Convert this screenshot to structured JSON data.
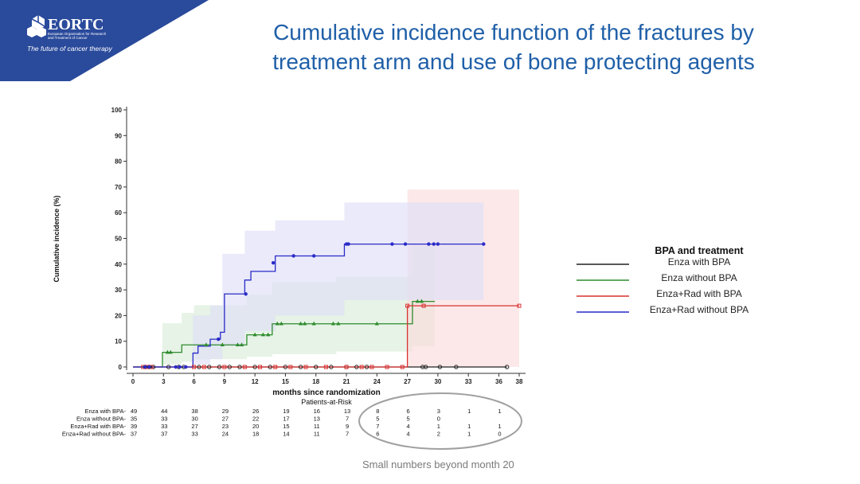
{
  "slide": {
    "title_line1": "Cumulative incidence function of the fractures by",
    "title_line2": "treatment arm and use of bone protecting agents",
    "footnote": "Small numbers beyond month 20",
    "logo": {
      "name": "EORTC",
      "line1": "European Organisation for Research",
      "line2": "and Treatment of Cancer",
      "tagline": "The future of cancer therapy",
      "color": "#2a4a9b"
    }
  },
  "chart_data": {
    "type": "line",
    "subtype": "step",
    "xlabel": "months since randomization",
    "ylabel": "Cumulative incidence (%)",
    "xlim": [
      0,
      38
    ],
    "ylim": [
      0,
      100
    ],
    "xticks": [
      0,
      3,
      6,
      9,
      12,
      15,
      18,
      21,
      24,
      27,
      30,
      33,
      36,
      38
    ],
    "yticks": [
      0,
      10,
      20,
      30,
      40,
      50,
      60,
      70,
      80,
      90,
      100
    ],
    "grid": false,
    "legend": {
      "title": "BPA and treatment",
      "placement": "right"
    },
    "series": [
      {
        "name": "Enza with BPA",
        "color": "#222222",
        "x": [
          0,
          36.8
        ],
        "y": [
          0,
          0
        ],
        "censor": [
          [
            1.2,
            0
          ],
          [
            1.6,
            0
          ],
          [
            2.0,
            0
          ],
          [
            3.5,
            0
          ],
          [
            4.5,
            0
          ],
          [
            5.0,
            0
          ],
          [
            6.5,
            0
          ],
          [
            7.5,
            0
          ],
          [
            8.5,
            0
          ],
          [
            9.5,
            0
          ],
          [
            10.5,
            0
          ],
          [
            12,
            0
          ],
          [
            13.5,
            0
          ],
          [
            15,
            0
          ],
          [
            16.5,
            0
          ],
          [
            18,
            0
          ],
          [
            19.5,
            0
          ],
          [
            21,
            0
          ],
          [
            22,
            0
          ],
          [
            23,
            0
          ],
          [
            28.5,
            0
          ],
          [
            28.8,
            0
          ],
          [
            30.2,
            0
          ],
          [
            31.8,
            0
          ],
          [
            36.8,
            0
          ]
        ]
      },
      {
        "name": "Enza without BPA",
        "color": "#2e8b2e",
        "band": {
          "color": "#d9ecd9",
          "x": [
            2.9,
            4.8,
            6.0,
            11.2,
            13.7,
            20.0,
            27.5,
            29.7
          ],
          "lo": [
            1,
            2,
            3,
            4,
            5,
            6,
            8,
            8
          ],
          "hi": [
            17,
            21,
            24,
            28,
            33,
            35,
            47,
            47
          ]
        },
        "x": [
          0,
          2.9,
          4.8,
          8.8,
          11.2,
          13.7,
          27.5,
          29.7
        ],
        "y": [
          0,
          5.7,
          8.6,
          8.6,
          12.5,
          16.8,
          25.5,
          25.5
        ],
        "censor": [
          [
            3.4,
            5.7
          ],
          [
            3.7,
            5.7
          ],
          [
            7.2,
            8.6
          ],
          [
            8.8,
            8.6
          ],
          [
            10.3,
            8.6
          ],
          [
            10.7,
            8.6
          ],
          [
            12,
            12.5
          ],
          [
            12.8,
            12.5
          ],
          [
            13.3,
            12.5
          ],
          [
            14.2,
            16.8
          ],
          [
            14.6,
            16.8
          ],
          [
            16.5,
            16.8
          ],
          [
            16.9,
            16.8
          ],
          [
            17.8,
            16.8
          ],
          [
            19.7,
            16.8
          ],
          [
            20.2,
            16.8
          ],
          [
            24,
            16.8
          ],
          [
            28,
            25.5
          ],
          [
            28.4,
            25.5
          ]
        ]
      },
      {
        "name": "Enza+Rad with BPA",
        "color": "#d93030",
        "band": {
          "color": "#fbdcdc",
          "x": [
            27.0,
            38.0
          ],
          "lo": [
            0,
            0
          ],
          "hi": [
            69,
            69
          ]
        },
        "x": [
          0,
          27.0,
          38.0
        ],
        "y": [
          0,
          23.8,
          23.8
        ],
        "censor": [
          [
            1.0,
            0
          ],
          [
            1.4,
            0
          ],
          [
            1.8,
            0
          ],
          [
            6.0,
            0
          ],
          [
            7.0,
            0
          ],
          [
            9.0,
            0
          ],
          [
            11.0,
            0
          ],
          [
            12.5,
            0
          ],
          [
            14.0,
            0
          ],
          [
            15.5,
            0
          ],
          [
            17.0,
            0
          ],
          [
            19.0,
            0
          ],
          [
            21.0,
            0
          ],
          [
            22.5,
            0
          ],
          [
            23.5,
            0
          ],
          [
            25.0,
            0
          ],
          [
            26.5,
            0
          ],
          [
            27.0,
            23.8
          ],
          [
            28.6,
            23.8
          ],
          [
            38.0,
            23.8
          ]
        ]
      },
      {
        "name": "Enza+Rad without BPA",
        "color": "#2a2ac8",
        "band": {
          "color": "#dedef8",
          "x": [
            5.9,
            7.6,
            8.8,
            11.0,
            14.0,
            20.8,
            34.5
          ],
          "lo": [
            1,
            3,
            8,
            14,
            20,
            26,
            30
          ],
          "hi": [
            20,
            24,
            44,
            53,
            57,
            64,
            64
          ]
        },
        "x": [
          0,
          5.9,
          6.4,
          7.6,
          8.6,
          9.0,
          11.0,
          11.6,
          14.0,
          20.8,
          34.5
        ],
        "y": [
          0,
          5.4,
          8.1,
          10.8,
          13.5,
          28.4,
          33.8,
          37.2,
          43.2,
          47.8,
          47.8
        ],
        "censor": [
          [
            1.2,
            0
          ],
          [
            1.6,
            0
          ],
          [
            4.2,
            0
          ],
          [
            4.6,
            0
          ],
          [
            5.2,
            0
          ],
          [
            8.4,
            10.8
          ],
          [
            11.1,
            28.4
          ],
          [
            13.8,
            40.5
          ],
          [
            15.8,
            43.2
          ],
          [
            17.8,
            43.2
          ],
          [
            21,
            47.8
          ],
          [
            21.2,
            47.8
          ],
          [
            25.5,
            47.8
          ],
          [
            26.8,
            47.8
          ],
          [
            29.1,
            47.8
          ],
          [
            29.6,
            47.8
          ],
          [
            30.0,
            47.8
          ],
          [
            34.5,
            47.8
          ]
        ]
      }
    ],
    "risk_table": {
      "title": "Patients-at-Risk",
      "times": [
        0,
        3,
        6,
        9,
        12,
        15,
        18,
        21,
        24,
        27,
        30,
        33,
        36
      ],
      "rows": [
        {
          "label": "Enza with BPA-",
          "values": [
            "49",
            "44",
            "38",
            "29",
            "26",
            "19",
            "16",
            "13",
            "8",
            "6",
            "3",
            "1",
            "1"
          ]
        },
        {
          "label": "Enza without BPA-",
          "values": [
            "35",
            "33",
            "30",
            "27",
            "22",
            "17",
            "13",
            "7",
            "5",
            "5",
            "0",
            "",
            ""
          ]
        },
        {
          "label": "Enza+Rad with BPA-",
          "values": [
            "39",
            "33",
            "27",
            "23",
            "20",
            "15",
            "11",
            "9",
            "7",
            "4",
            "1",
            "1",
            "1"
          ]
        },
        {
          "label": "Enza+Rad without BPA-",
          "values": [
            "37",
            "37",
            "33",
            "24",
            "18",
            "14",
            "11",
            "7",
            "6",
            "4",
            "2",
            "1",
            "0"
          ]
        }
      ]
    }
  }
}
